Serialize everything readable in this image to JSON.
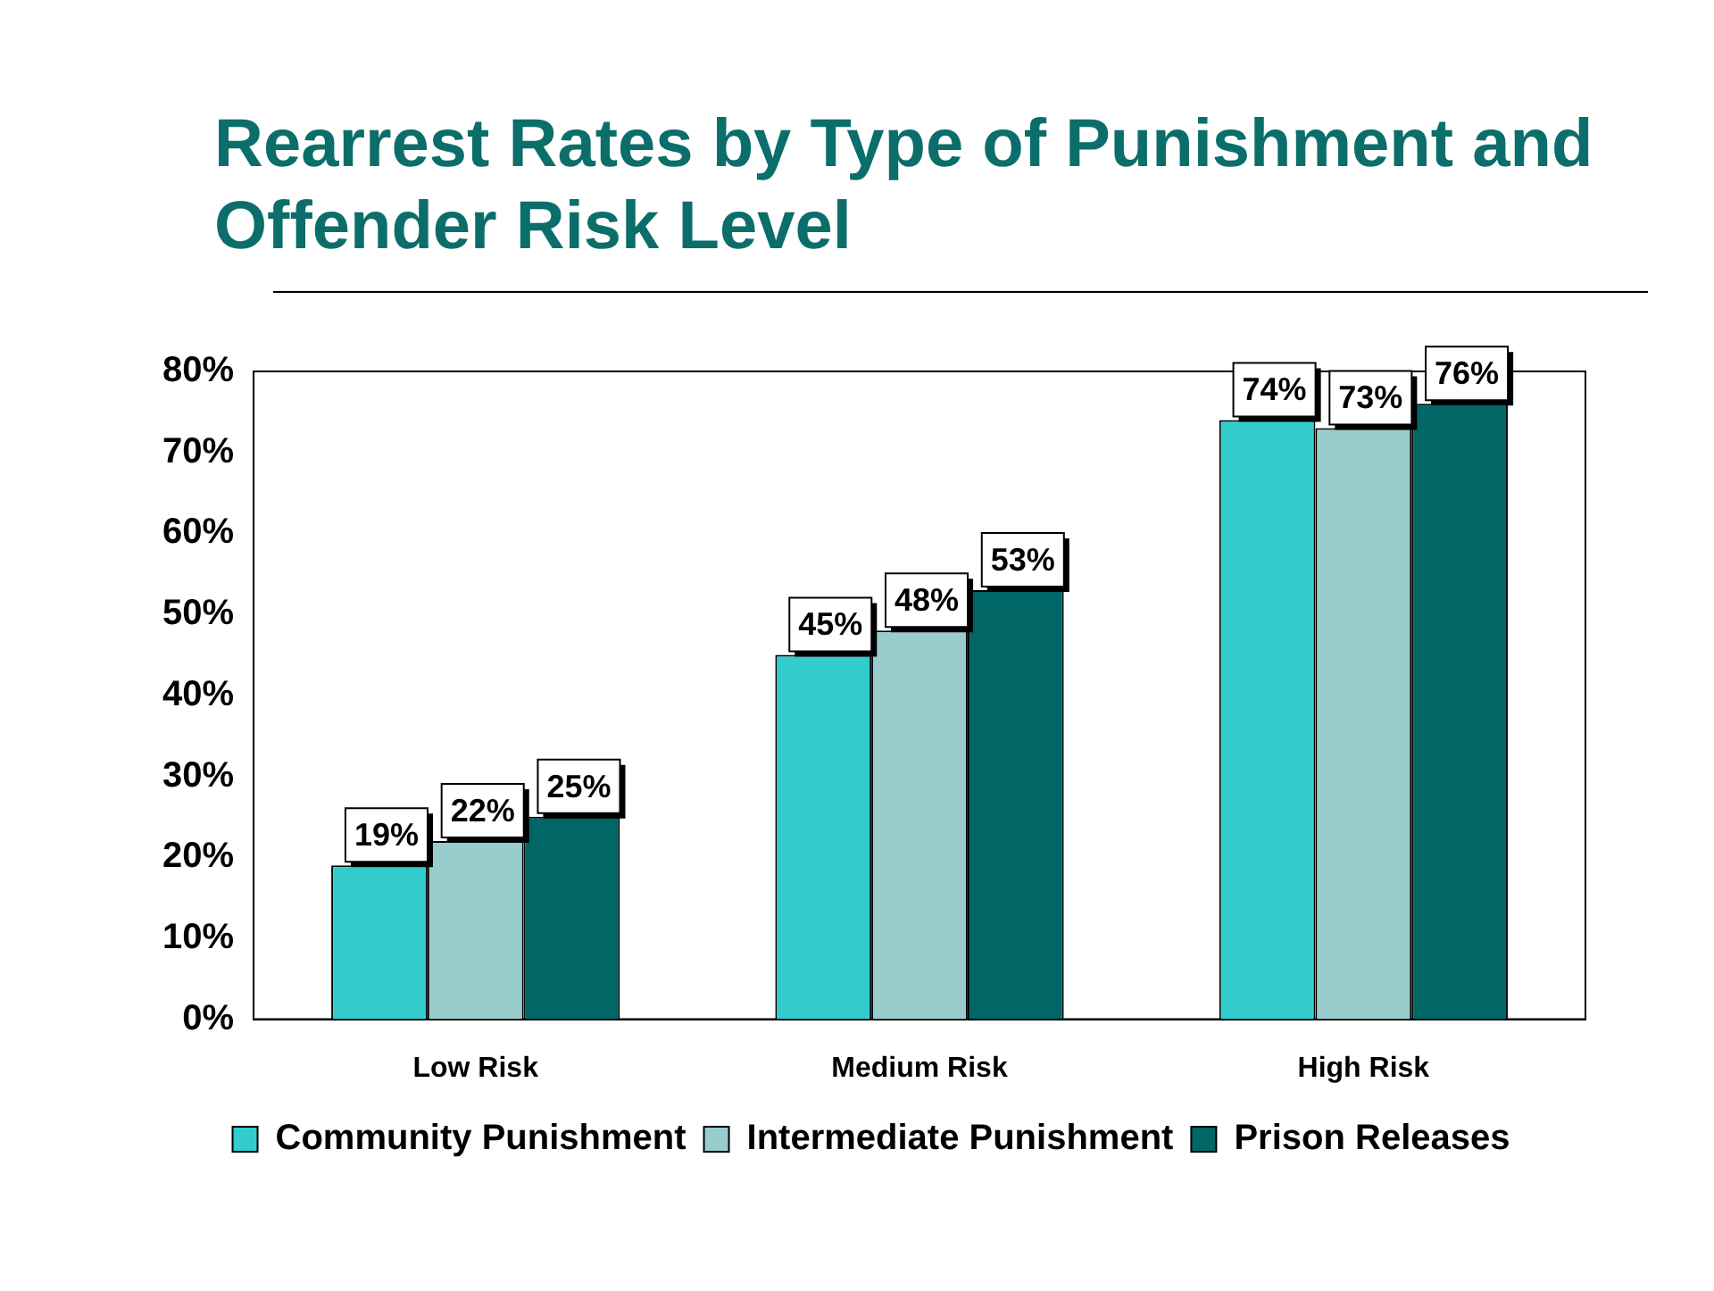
{
  "chart_data": {
    "type": "bar",
    "title": "Rearrest Rates by Type of Punishment and Offender Risk Level",
    "categories": [
      "Low Risk",
      "Medium Risk",
      "High Risk"
    ],
    "series": [
      {
        "name": "Community Punishment",
        "color": "#33cccc",
        "values": [
          19,
          45,
          74
        ],
        "value_labels": [
          "19%",
          "45%",
          "74%"
        ]
      },
      {
        "name": "Intermediate Punishment",
        "color": "#99cccc",
        "values": [
          22,
          48,
          73
        ],
        "value_labels": [
          "22%",
          "48%",
          "73%"
        ]
      },
      {
        "name": "Prison Releases",
        "color": "#006666",
        "values": [
          25,
          53,
          76
        ],
        "value_labels": [
          "25%",
          "53%",
          "76%"
        ]
      }
    ],
    "ylim": [
      0,
      80
    ],
    "yticks": [
      {
        "value": 0,
        "label": "0%"
      },
      {
        "value": 10,
        "label": "10%"
      },
      {
        "value": 20,
        "label": "20%"
      },
      {
        "value": 30,
        "label": "30%"
      },
      {
        "value": 40,
        "label": "40%"
      },
      {
        "value": 50,
        "label": "50%"
      },
      {
        "value": 60,
        "label": "60%"
      },
      {
        "value": 70,
        "label": "70%"
      },
      {
        "value": 80,
        "label": "80%"
      }
    ],
    "grid": false,
    "legend": "bottom"
  }
}
